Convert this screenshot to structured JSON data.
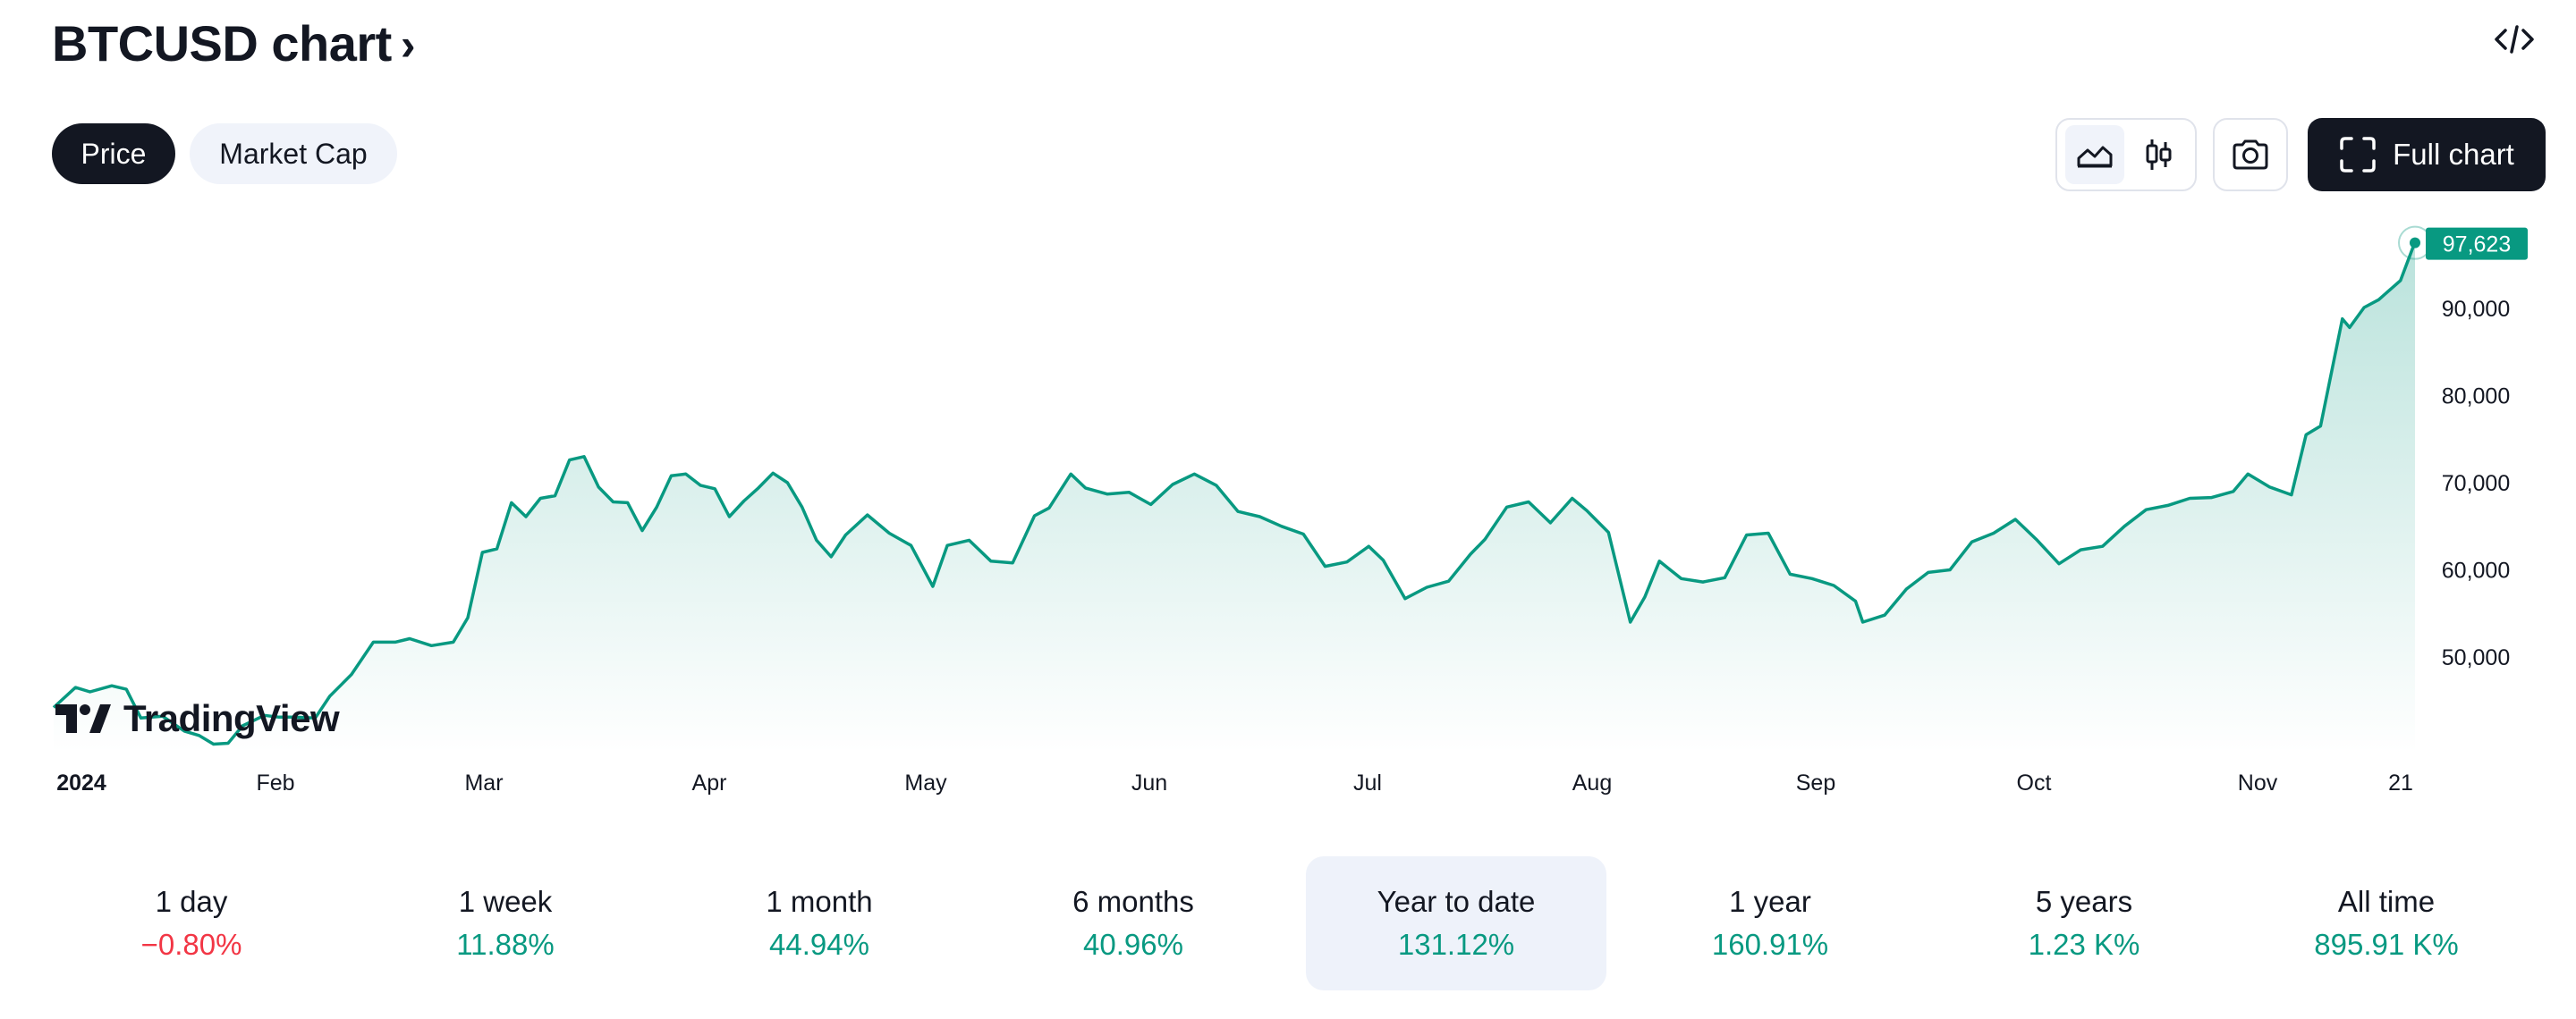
{
  "header": {
    "title": "BTCUSD chart",
    "chevron": "›",
    "embed_icon": "code-icon"
  },
  "tabs": [
    {
      "label": "Price",
      "active": true
    },
    {
      "label": "Market Cap",
      "active": false
    }
  ],
  "toolbar": {
    "area_chart_icon": "area-chart-icon",
    "candles_icon": "candlestick-icon",
    "snapshot_icon": "camera-icon",
    "full_chart_label": "Full chart"
  },
  "watermark": "TradingView",
  "colors": {
    "line": "#089981",
    "positive": "#089981",
    "negative": "#f23645",
    "dark": "#131722",
    "active_period_bg": "#eef2fa"
  },
  "chart_data": {
    "type": "area",
    "series": [
      {
        "x": [
          "2024-01-01",
          "2024-01-04",
          "2024-01-06",
          "2024-01-09",
          "2024-01-11",
          "2024-01-13",
          "2024-01-16",
          "2024-01-19",
          "2024-01-21",
          "2024-01-23",
          "2024-01-25",
          "2024-01-27",
          "2024-01-30",
          "2024-02-01",
          "2024-02-03",
          "2024-02-06",
          "2024-02-08",
          "2024-02-11",
          "2024-02-14",
          "2024-02-17",
          "2024-02-19",
          "2024-02-22",
          "2024-02-25",
          "2024-02-27",
          "2024-02-29",
          "2024-03-02",
          "2024-03-04",
          "2024-03-06",
          "2024-03-08",
          "2024-03-10",
          "2024-03-12",
          "2024-03-14",
          "2024-03-16",
          "2024-03-18",
          "2024-03-20",
          "2024-03-22",
          "2024-03-24",
          "2024-03-26",
          "2024-03-28",
          "2024-03-30",
          "2024-04-01",
          "2024-04-03",
          "2024-04-05",
          "2024-04-07",
          "2024-04-09",
          "2024-04-11",
          "2024-04-13",
          "2024-04-15",
          "2024-04-17",
          "2024-04-19",
          "2024-04-22",
          "2024-04-25",
          "2024-04-28",
          "2024-05-01",
          "2024-05-03",
          "2024-05-06",
          "2024-05-09",
          "2024-05-12",
          "2024-05-15",
          "2024-05-17",
          "2024-05-20",
          "2024-05-22",
          "2024-05-25",
          "2024-05-28",
          "2024-05-31",
          "2024-06-03",
          "2024-06-06",
          "2024-06-09",
          "2024-06-12",
          "2024-06-15",
          "2024-06-18",
          "2024-06-21",
          "2024-06-24",
          "2024-06-27",
          "2024-06-30",
          "2024-07-02",
          "2024-07-05",
          "2024-07-08",
          "2024-07-11",
          "2024-07-14",
          "2024-07-16",
          "2024-07-19",
          "2024-07-22",
          "2024-07-25",
          "2024-07-28",
          "2024-07-30",
          "2024-08-02",
          "2024-08-05",
          "2024-08-07",
          "2024-08-09",
          "2024-08-12",
          "2024-08-15",
          "2024-08-18",
          "2024-08-21",
          "2024-08-24",
          "2024-08-27",
          "2024-08-30",
          "2024-09-02",
          "2024-09-05",
          "2024-09-06",
          "2024-09-09",
          "2024-09-12",
          "2024-09-15",
          "2024-09-18",
          "2024-09-21",
          "2024-09-24",
          "2024-09-27",
          "2024-09-30",
          "2024-10-03",
          "2024-10-06",
          "2024-10-09",
          "2024-10-12",
          "2024-10-15",
          "2024-10-18",
          "2024-10-21",
          "2024-10-24",
          "2024-10-27",
          "2024-10-29",
          "2024-11-01",
          "2024-11-04",
          "2024-11-06",
          "2024-11-08",
          "2024-11-11",
          "2024-11-12",
          "2024-11-14",
          "2024-11-16",
          "2024-11-19",
          "2024-11-21"
        ],
        "values": [
          44200,
          46500,
          46000,
          46700,
          46300,
          43000,
          43200,
          41500,
          41000,
          40000,
          40100,
          42100,
          43300,
          43100,
          43100,
          43000,
          45500,
          48000,
          51700,
          51700,
          52100,
          51300,
          51700,
          54500,
          62000,
          62400,
          67700,
          66100,
          68200,
          68500,
          72600,
          73000,
          69500,
          67800,
          67700,
          64500,
          67200,
          70800,
          71000,
          69700,
          69300,
          66100,
          67900,
          69400,
          71100,
          70000,
          67200,
          63400,
          61500,
          64000,
          66300,
          64200,
          62800,
          58100,
          62800,
          63400,
          61000,
          60800,
          66200,
          67100,
          71000,
          69400,
          68700,
          68900,
          67500,
          69800,
          71000,
          69700,
          66700,
          66100,
          65000,
          64100,
          60400,
          60900,
          62700,
          61100,
          56700,
          58000,
          58700,
          61800,
          63500,
          67200,
          67800,
          65400,
          68200,
          66800,
          64300,
          54000,
          56900,
          61000,
          59000,
          58600,
          59100,
          64000,
          64200,
          59500,
          59000,
          58200,
          56400,
          54000,
          54800,
          57800,
          59700,
          60000,
          63200,
          64200,
          65800,
          63400,
          60700,
          62300,
          62700,
          65000,
          66900,
          67400,
          68200,
          68300,
          69000,
          71000,
          69500,
          68600,
          75500,
          76500,
          88800,
          87800,
          90100,
          91000,
          93200,
          97623
        ]
      }
    ],
    "xticks": [
      "2024",
      "Feb",
      "Mar",
      "Apr",
      "May",
      "Jun",
      "Jul",
      "Aug",
      "Sep",
      "Oct",
      "Nov",
      "21"
    ],
    "yticks": [
      50000,
      60000,
      70000,
      80000,
      90000
    ],
    "ytick_labels": [
      "50,000",
      "60,000",
      "70,000",
      "80,000",
      "90,000"
    ],
    "last_value_label": "97,623",
    "ylim": [
      39000,
      100000
    ]
  },
  "periods": [
    {
      "label": "1 day",
      "value": "−0.80%",
      "trend": "neg",
      "active": false
    },
    {
      "label": "1 week",
      "value": "11.88%",
      "trend": "pos",
      "active": false
    },
    {
      "label": "1 month",
      "value": "44.94%",
      "trend": "pos",
      "active": false
    },
    {
      "label": "6 months",
      "value": "40.96%",
      "trend": "pos",
      "active": false
    },
    {
      "label": "Year to date",
      "value": "131.12%",
      "trend": "pos",
      "active": true
    },
    {
      "label": "1 year",
      "value": "160.91%",
      "trend": "pos",
      "active": false
    },
    {
      "label": "5 years",
      "value": "1.23 K%",
      "trend": "pos",
      "active": false
    },
    {
      "label": "All time",
      "value": "895.91 K%",
      "trend": "pos",
      "active": false
    }
  ]
}
